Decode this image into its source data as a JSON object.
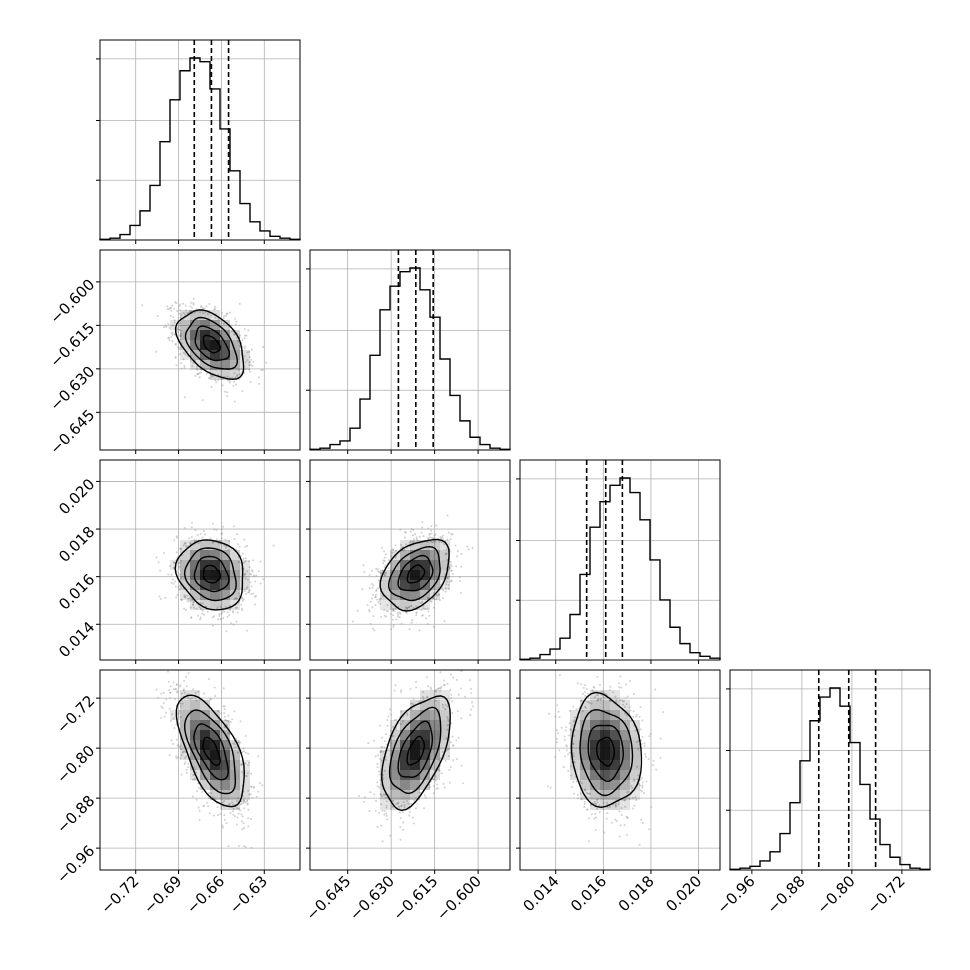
{
  "chart_data": {
    "type": "corner",
    "parameters": [
      {
        "index": 0,
        "range": [
          -0.745,
          -0.605
        ],
        "quantiles": [
          -0.679,
          -0.667,
          -0.655
        ],
        "ticks": [
          -0.72,
          -0.69,
          -0.66,
          -0.63
        ],
        "tick_labels": [
          "−0.72",
          "−0.69",
          "−0.66",
          "−0.63"
        ],
        "histogram": [
          0.004,
          0.01,
          0.03,
          0.08,
          0.16,
          0.3,
          0.54,
          0.77,
          0.93,
          1.0,
          0.98,
          0.83,
          0.61,
          0.38,
          0.2,
          0.1,
          0.05,
          0.02,
          0.01,
          0.004
        ]
      },
      {
        "index": 1,
        "range": [
          -0.658,
          -0.589
        ],
        "quantiles": [
          -0.6275,
          -0.6215,
          -0.6155
        ],
        "ticks": [
          -0.645,
          -0.63,
          -0.615,
          -0.6
        ],
        "tick_labels": [
          "−0.645",
          "−0.630",
          "−0.615",
          "−0.600"
        ],
        "histogram": [
          0.004,
          0.01,
          0.03,
          0.05,
          0.12,
          0.28,
          0.52,
          0.77,
          0.9,
          0.98,
          1.0,
          0.88,
          0.73,
          0.5,
          0.3,
          0.16,
          0.07,
          0.03,
          0.01,
          0.004
        ]
      },
      {
        "index": 2,
        "range": [
          0.0125,
          0.0209
        ],
        "quantiles": [
          0.0153,
          0.0161,
          0.0168
        ],
        "ticks": [
          0.014,
          0.016,
          0.018,
          0.02
        ],
        "tick_labels": [
          "0.014",
          "0.016",
          "0.018",
          "0.020"
        ],
        "histogram": [
          0.004,
          0.01,
          0.03,
          0.06,
          0.12,
          0.25,
          0.47,
          0.73,
          0.87,
          0.96,
          1.0,
          0.92,
          0.77,
          0.55,
          0.33,
          0.18,
          0.09,
          0.04,
          0.02,
          0.01
        ]
      },
      {
        "index": 3,
        "range": [
          -0.995,
          -0.675
        ],
        "quantiles": [
          -0.853,
          -0.805,
          -0.762
        ],
        "ticks": [
          -0.96,
          -0.88,
          -0.8,
          -0.72
        ],
        "tick_labels": [
          "−0.96",
          "−0.88",
          "−0.80",
          "−0.72"
        ],
        "histogram": [
          0.004,
          0.01,
          0.02,
          0.05,
          0.1,
          0.2,
          0.37,
          0.6,
          0.82,
          0.95,
          1.0,
          0.9,
          0.7,
          0.47,
          0.28,
          0.14,
          0.07,
          0.03,
          0.01,
          0.004
        ]
      }
    ],
    "correlations": {
      "1_0": -0.45,
      "2_0": -0.15,
      "2_1": 0.35,
      "3_0": -0.6,
      "3_1": 0.5,
      "3_2": -0.1
    },
    "contour_levels": [
      0.5,
      1.0,
      1.5,
      2.0
    ],
    "grid": true,
    "colors": {
      "line": "#000000",
      "grid": "#b0b0b0",
      "scatter": "#9a9a9a",
      "density_shade": "#000000"
    }
  }
}
